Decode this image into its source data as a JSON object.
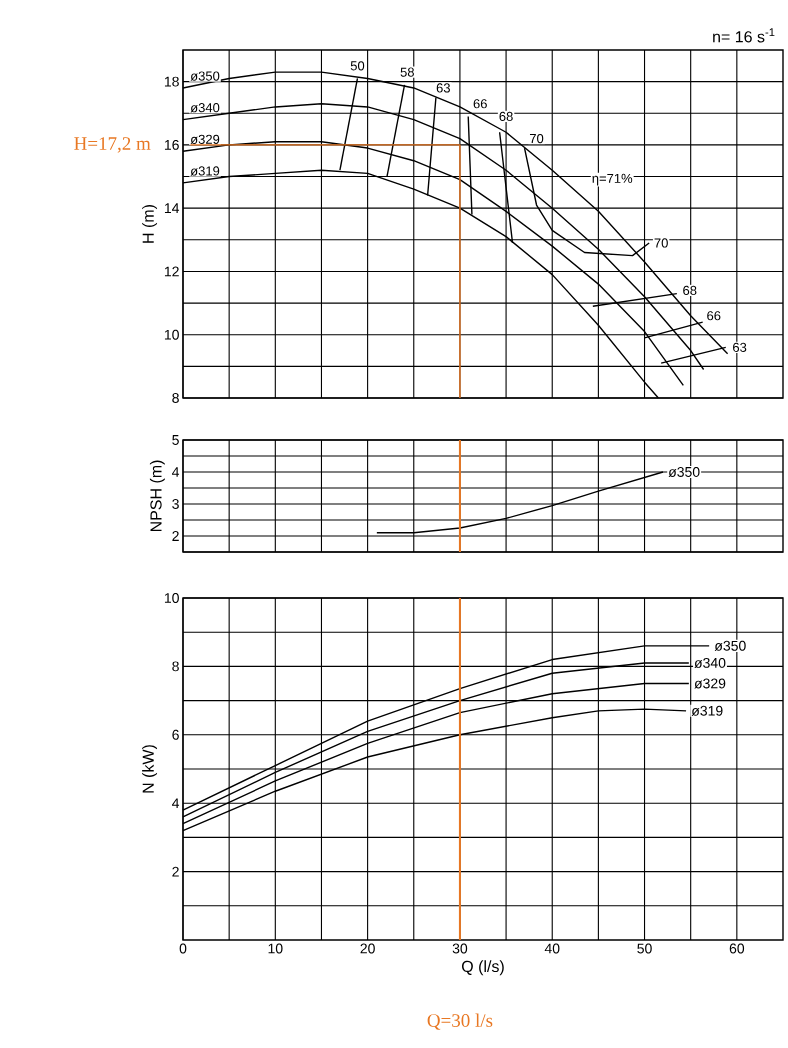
{
  "chart_data": [
    {
      "type": "line",
      "ylabel": "H (m)",
      "xlim": [
        0,
        65
      ],
      "ylim": [
        8,
        19
      ],
      "xticks": [
        0,
        {
          "value": 5,
          "label": null
        },
        10,
        {
          "value": 15,
          "label": null
        },
        20,
        {
          "value": 25,
          "label": null
        },
        30,
        {
          "value": 35,
          "label": null
        },
        40,
        {
          "value": 45,
          "label": null
        },
        50,
        {
          "value": 55,
          "label": null
        },
        60
      ],
      "yticks": [
        8,
        {
          "value": 9,
          "label": null
        },
        10,
        {
          "value": 11,
          "label": null
        },
        12,
        {
          "value": 13,
          "label": null
        },
        14,
        {
          "value": 15,
          "label": null
        },
        16,
        {
          "value": 17,
          "label": null
        },
        18
      ],
      "grid": true,
      "tick_labels": "y",
      "series": [
        {
          "name": "ø350",
          "color": "#000000",
          "x": [
            0,
            5,
            10,
            15,
            20,
            25,
            30,
            35,
            40,
            45,
            50,
            55,
            59
          ],
          "values": [
            17.8,
            18.1,
            18.3,
            18.3,
            18.1,
            17.8,
            17.2,
            16.4,
            15.2,
            13.9,
            12.3,
            10.6,
            9.4
          ]
        },
        {
          "name": "ø340",
          "color": "#000000",
          "x": [
            0,
            5,
            10,
            15,
            20,
            25,
            30,
            35,
            40,
            45,
            50,
            55,
            56.4
          ],
          "values": [
            16.8,
            17.0,
            17.2,
            17.3,
            17.2,
            16.8,
            16.2,
            15.2,
            14.0,
            12.7,
            11.2,
            9.5,
            8.9
          ]
        },
        {
          "name": "ø329",
          "color": "#000000",
          "x": [
            0,
            5,
            10,
            15,
            20,
            25,
            30,
            35,
            40,
            45,
            50,
            54.2
          ],
          "values": [
            15.8,
            16.0,
            16.1,
            16.1,
            15.9,
            15.5,
            14.9,
            13.9,
            12.8,
            11.6,
            10.1,
            8.4
          ]
        },
        {
          "name": "ø319",
          "color": "#000000",
          "x": [
            0,
            5,
            10,
            15,
            20,
            25,
            30,
            35,
            40,
            45,
            50,
            51.5
          ],
          "values": [
            14.8,
            15.0,
            15.1,
            15.2,
            15.1,
            14.6,
            14.0,
            13.1,
            11.9,
            10.3,
            8.5,
            8.0
          ]
        },
        {
          "color": "#000000",
          "x": [
            18.9,
            17.0
          ],
          "values": [
            18.1,
            15.2
          ]
        },
        {
          "color": "#000000",
          "x": [
            24.0,
            22.1
          ],
          "values": [
            17.9,
            15.0
          ]
        },
        {
          "color": "#000000",
          "x": [
            27.4,
            26.5,
            40,
            51.8,
            58.8
          ],
          "values": [
            17.5,
            14.4,
            null,
            9.1,
            9.6
          ]
        },
        {
          "color": "#000000",
          "x": [
            30.9,
            31.3,
            40,
            50,
            56.3
          ],
          "values": [
            16.9,
            13.8,
            null,
            9.9,
            10.4
          ]
        },
        {
          "color": "#000000",
          "x": [
            34.3,
            35.7,
            40,
            44.4,
            53.5
          ],
          "values": [
            16.4,
            12.9,
            null,
            10.9,
            11.3
          ]
        },
        {
          "color": "#000000",
          "x": [
            37,
            38.3,
            40,
            43.5,
            48.7,
            50.5
          ],
          "values": [
            15.9,
            14.1,
            13.3,
            12.6,
            12.5,
            12.9
          ]
        },
        {
          "name": "H=17,2 m",
          "color": "#e87722",
          "x": [
            0.8,
            30,
            30
          ],
          "values": [
            16,
            16,
            8
          ]
        }
      ],
      "annotations": [
        {
          "text": "50",
          "x": 18.9,
          "y": 18.5
        },
        {
          "text": "58",
          "x": 24.3,
          "y": 18.3
        },
        {
          "text": "63",
          "x": 28.2,
          "y": 17.8
        },
        {
          "text": "66",
          "x": 32.2,
          "y": 17.3
        },
        {
          "text": "68",
          "x": 35,
          "y": 16.9
        },
        {
          "text": "70",
          "x": 38.3,
          "y": 16.2
        },
        {
          "text": "η=71%",
          "x": 46.5,
          "y": 14.9
        },
        {
          "text": "70",
          "x": 51.8,
          "y": 12.9
        },
        {
          "text": "68",
          "x": 54.9,
          "y": 11.4
        },
        {
          "text": "66",
          "x": 57.5,
          "y": 10.6
        },
        {
          "text": "63",
          "x": 60.3,
          "y": 9.6
        },
        "n= 16 s$^{-1}$"
      ]
    },
    {
      "type": "line",
      "ylabel": "NPSH (m)",
      "xlim": [
        0,
        65
      ],
      "ylim": [
        1.5,
        5
      ],
      "xticks": [
        0,
        {
          "value": 5,
          "label": null
        },
        10,
        {
          "value": 15,
          "label": null
        },
        20,
        {
          "value": 25,
          "label": null
        },
        30,
        {
          "value": 35,
          "label": null
        },
        40,
        {
          "value": 45,
          "label": null
        },
        50,
        {
          "value": 55,
          "label": null
        },
        60
      ],
      "yticks": [
        {
          "value": 1.5,
          "label": null
        },
        2,
        {
          "value": 2.5,
          "label": null
        },
        3,
        {
          "value": 3.5,
          "label": null
        },
        4,
        {
          "value": 4.5,
          "label": null
        },
        5
      ],
      "grid": true,
      "tick_labels": "y",
      "series": [
        {
          "name": "ø350",
          "color": "#000000",
          "x": [
            21,
            25,
            30,
            35,
            40,
            45,
            52
          ],
          "values": [
            2.1,
            2.1,
            2.25,
            2.55,
            2.95,
            3.4,
            4.0
          ]
        }
      ],
      "ref_lines": [
        {
          "axis": "x",
          "value": 30,
          "color": "#e87722"
        }
      ]
    },
    {
      "type": "line",
      "ylabel": "N (kW)",
      "xlabel": "Q (l/s)",
      "xlim": [
        0,
        65
      ],
      "ylim": [
        0,
        10
      ],
      "xticks": [
        0,
        {
          "value": 5,
          "label": null
        },
        10,
        {
          "value": 15,
          "label": null
        },
        20,
        {
          "value": 25,
          "label": null
        },
        30,
        {
          "value": 35,
          "label": null
        },
        40,
        {
          "value": 45,
          "label": null
        },
        50,
        {
          "value": 55,
          "label": null
        },
        60
      ],
      "yticks": [
        {
          "value": 1,
          "label": null
        },
        2,
        {
          "value": 3,
          "label": null
        },
        4,
        {
          "value": 5,
          "label": null
        },
        6,
        {
          "value": 7,
          "label": null
        },
        8,
        {
          "value": 9,
          "label": null
        },
        10
      ],
      "grid": true,
      "series": [
        {
          "name": "ø350",
          "color": "#000000",
          "x": [
            0,
            10,
            20,
            30,
            40,
            50,
            57
          ],
          "values": [
            3.8,
            5.1,
            6.4,
            7.35,
            8.2,
            8.6,
            8.6
          ]
        },
        {
          "name": "ø340",
          "color": "#000000",
          "x": [
            0,
            10,
            20,
            30,
            40,
            50,
            54.8
          ],
          "values": [
            3.6,
            4.9,
            6.1,
            7.0,
            7.8,
            8.1,
            8.1
          ]
        },
        {
          "name": "ø329",
          "color": "#000000",
          "x": [
            0,
            10,
            20,
            30,
            40,
            50,
            54.8
          ],
          "values": [
            3.4,
            4.65,
            5.75,
            6.65,
            7.2,
            7.5,
            7.5
          ]
        },
        {
          "name": "ø319",
          "color": "#000000",
          "x": [
            0,
            10,
            20,
            30,
            40,
            45,
            50,
            54.5
          ],
          "values": [
            3.2,
            4.35,
            5.35,
            6.0,
            6.5,
            6.7,
            6.75,
            6.7
          ]
        }
      ],
      "ref_lines": [
        {
          "axis": "x",
          "value": 30,
          "label": "Q=30 l/s",
          "color": "#e87722"
        }
      ]
    }
  ]
}
